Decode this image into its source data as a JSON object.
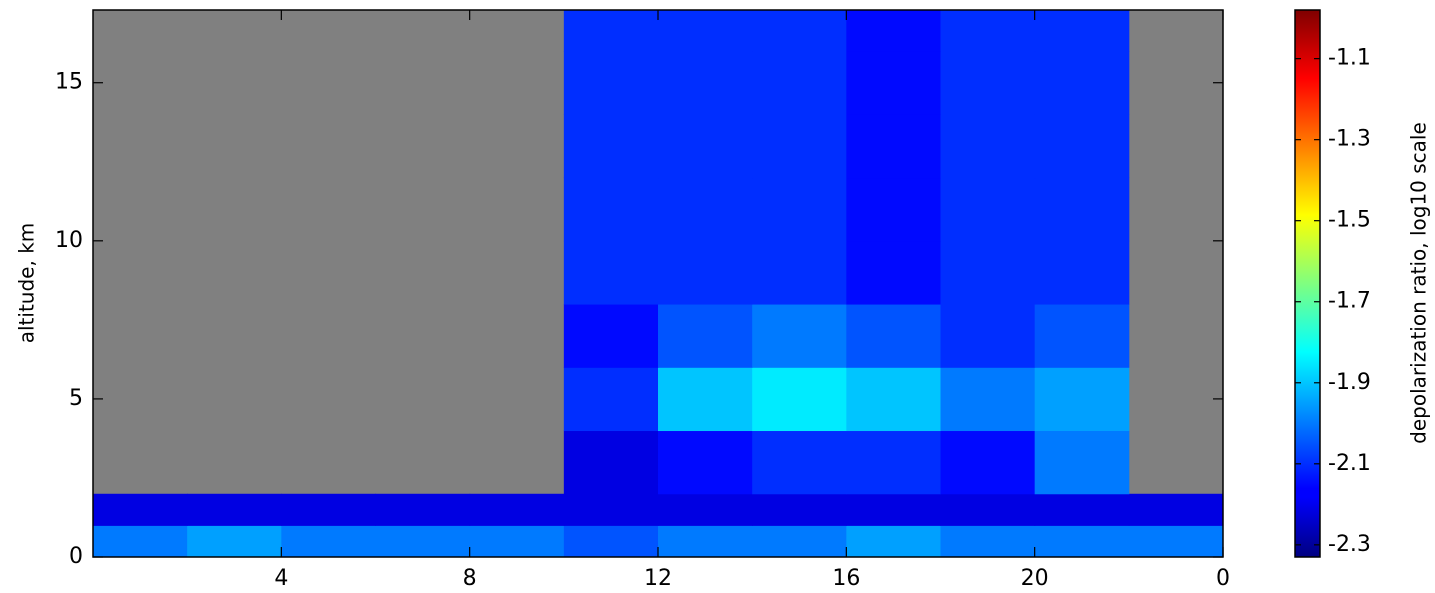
{
  "chart_data": {
    "type": "heatmap",
    "xlabel": null,
    "ylabel": "altitude, km",
    "colorbar_label": "depolarization ratio, log10 scale",
    "colormap": "jet",
    "background": "#808080",
    "xlim": [
      0,
      24
    ],
    "xticks": [
      4,
      8,
      12,
      16,
      20,
      {
        "value": 24,
        "label": "0"
      }
    ],
    "ylim": [
      0,
      17.3
    ],
    "yticks": [
      0,
      5,
      10,
      15
    ],
    "clim": [
      -2.33,
      -0.98
    ],
    "cticks": [
      -1.1,
      -1.3,
      -1.5,
      -1.7,
      -1.9,
      -2.1,
      -2.3
    ],
    "xbins": [
      0,
      2,
      4,
      6,
      8,
      10,
      12,
      14,
      16,
      18,
      20,
      22,
      24
    ],
    "ybins": [
      0,
      1,
      2,
      4,
      6,
      8,
      10,
      12,
      14,
      16,
      17.3
    ],
    "values": [
      [
        -2.0,
        -1.95,
        -2.0,
        -2.0,
        -2.0,
        -2.05,
        -2.0,
        -2.0,
        -1.95,
        -2.0,
        -2.0,
        -2.0
      ],
      [
        -2.2,
        -2.2,
        -2.2,
        -2.2,
        -2.2,
        -2.2,
        -2.2,
        -2.2,
        -2.2,
        -2.2,
        -2.2,
        -2.2
      ],
      [
        null,
        null,
        null,
        null,
        null,
        -2.2,
        -2.15,
        -2.1,
        -2.1,
        -2.15,
        -2.0,
        null
      ],
      [
        null,
        null,
        null,
        null,
        null,
        -2.1,
        -1.9,
        -1.85,
        -1.9,
        -2.0,
        -1.95,
        null
      ],
      [
        null,
        null,
        null,
        null,
        null,
        -2.15,
        -2.05,
        -2.0,
        -2.05,
        -2.1,
        -2.05,
        null
      ],
      [
        null,
        null,
        null,
        null,
        null,
        -2.1,
        -2.1,
        -2.1,
        -2.15,
        -2.1,
        -2.1,
        null
      ],
      [
        null,
        null,
        null,
        null,
        null,
        -2.1,
        -2.1,
        -2.1,
        -2.15,
        -2.1,
        -2.1,
        null
      ],
      [
        null,
        null,
        null,
        null,
        null,
        -2.1,
        -2.1,
        -2.1,
        -2.15,
        -2.1,
        -2.1,
        null
      ],
      [
        null,
        null,
        null,
        null,
        null,
        -2.1,
        -2.1,
        -2.1,
        -2.15,
        -2.1,
        -2.1,
        null
      ],
      [
        null,
        null,
        null,
        null,
        null,
        -2.1,
        -2.1,
        -2.1,
        -2.15,
        -2.1,
        -2.1,
        null
      ]
    ]
  }
}
